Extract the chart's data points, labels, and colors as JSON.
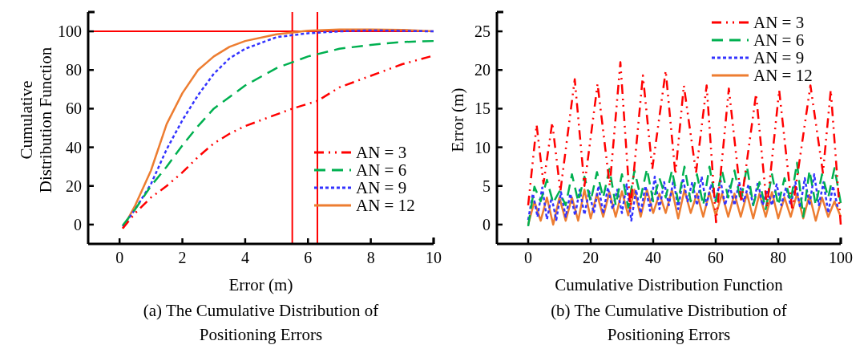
{
  "chart_data": [
    {
      "type": "line",
      "title": "(a) The Cumulative Distribution of Positioning Errors",
      "xlabel": "Error (m)",
      "ylabel": "Cumulative Distribution Function",
      "xlim": [
        -1,
        10
      ],
      "ylim": [
        -10,
        110
      ],
      "xticks": [
        0,
        2,
        4,
        6,
        8,
        10
      ],
      "yticks": [
        0,
        20,
        40,
        60,
        80,
        100
      ],
      "legend": "bottom right",
      "grid": false,
      "ref_lines": [
        {
          "axis": "y",
          "value": 100,
          "color": "#ff0000"
        },
        {
          "axis": "x",
          "value": 5.5,
          "color": "#ff0000"
        },
        {
          "axis": "x",
          "value": 6.3,
          "color": "#ff0000"
        }
      ],
      "series": [
        {
          "name": "AN = 3",
          "color": "#ff0000",
          "line_style": "dashdot",
          "x": [
            0.1,
            0.5,
            1,
            1.5,
            2,
            2.5,
            3,
            3.5,
            4,
            4.5,
            5,
            5.5,
            6.3,
            7,
            8,
            9,
            9.9
          ],
          "values": [
            -2,
            6,
            14,
            20,
            27,
            35,
            42,
            47,
            51,
            54,
            57,
            60,
            64,
            71,
            77,
            83,
            87
          ]
        },
        {
          "name": "AN = 6",
          "color": "#00b050",
          "line_style": "dashed",
          "x": [
            0.1,
            0.5,
            1,
            1.5,
            2,
            2.5,
            3,
            3.5,
            4,
            5,
            6,
            7,
            8,
            9,
            10
          ],
          "values": [
            -0.5,
            8,
            20,
            30,
            41,
            51,
            60,
            66,
            72,
            81,
            87,
            91,
            93,
            94.5,
            95
          ]
        },
        {
          "name": "AN = 9",
          "color": "#3333ff",
          "line_style": "dotted",
          "x": [
            0.1,
            0.5,
            1,
            1.5,
            2,
            2.5,
            3,
            3.5,
            4,
            5,
            6,
            7,
            8,
            10
          ],
          "values": [
            -1,
            8,
            21,
            39,
            54,
            67,
            78,
            86,
            91,
            97,
            99,
            100,
            100.5,
            100
          ]
        },
        {
          "name": "AN = 12",
          "color": "#ed7d31",
          "line_style": "solid",
          "x": [
            0.1,
            0.5,
            1,
            1.5,
            2,
            2.5,
            3,
            3.5,
            4,
            5,
            6,
            7,
            8,
            9,
            10
          ],
          "values": [
            -2,
            10,
            28,
            52,
            68,
            80,
            87,
            92,
            95,
            98.5,
            100.3,
            101,
            101,
            100.8,
            100
          ]
        }
      ]
    },
    {
      "type": "line",
      "title": "(b) The Cumulative Distribution of Positioning Errors",
      "xlabel": "Cumulative Distribution Function",
      "ylabel": "Error (m)",
      "xlim": [
        -10,
        100
      ],
      "ylim": [
        -2.5,
        27.5
      ],
      "xticks": [
        0,
        20,
        40,
        60,
        80,
        100
      ],
      "yticks": [
        0,
        5,
        10,
        15,
        20,
        25
      ],
      "legend": "top right",
      "grid": false,
      "series": [
        {
          "name": "AN = 3",
          "color": "#ff0000",
          "line_style": "dashdot",
          "x": [
            0,
            2.7,
            4.9,
            7.7,
            10.3,
            14.9,
            18,
            22.2,
            26.1,
            29.5,
            32.7,
            36.7,
            39.7,
            44,
            47.1,
            49.8,
            53.7,
            57.1,
            60.1,
            64.2,
            68.2,
            72.9,
            76.4,
            80.3,
            84.5,
            90.3,
            94.3,
            96.8,
            100
          ],
          "values": [
            2.5,
            12.9,
            5.3,
            13.2,
            4.3,
            18.8,
            5,
            18.2,
            5,
            21,
            2,
            19.3,
            7.2,
            19.9,
            6.5,
            18,
            6.7,
            18,
            0.3,
            17.6,
            2.9,
            16.9,
            2.2,
            17.4,
            1.8,
            18,
            6.7,
            17.4,
            0
          ]
        },
        {
          "name": "AN = 6",
          "color": "#00b050",
          "line_style": "dashed",
          "x": [
            0,
            2,
            4,
            6,
            8,
            10,
            12,
            14,
            16,
            18,
            20,
            22,
            24,
            26,
            28,
            30,
            32,
            34,
            36,
            38,
            40,
            42,
            44,
            46,
            48,
            50,
            52,
            54,
            56,
            58,
            60,
            62,
            64,
            66,
            68,
            70,
            72,
            74,
            76,
            78,
            80,
            82,
            84,
            86,
            88,
            90,
            92,
            94,
            96,
            98,
            100
          ],
          "values": [
            -0.2,
            4.9,
            3,
            5.8,
            2.8,
            4.3,
            2.5,
            6.5,
            3,
            6.2,
            3,
            6.8,
            3.5,
            7.2,
            2.5,
            6.5,
            2.2,
            7,
            3.5,
            7.2,
            3,
            6,
            3.5,
            7,
            3,
            7.5,
            3,
            6.5,
            2.5,
            7.5,
            3,
            7,
            3.5,
            7,
            3,
            7.5,
            2.5,
            5.5,
            2,
            6.5,
            2.5,
            6,
            3,
            8,
            1,
            7,
            2.5,
            6.5,
            3.5,
            7.3,
            2.8
          ]
        },
        {
          "name": "AN = 9",
          "color": "#3333ff",
          "line_style": "dotted",
          "x": [
            0,
            1.5,
            3,
            4.5,
            6,
            7.5,
            9,
            10.5,
            12,
            13.5,
            15,
            16.5,
            18,
            19.5,
            21,
            22.5,
            24,
            25.5,
            27,
            28.5,
            30,
            31.5,
            33,
            34.5,
            36,
            37.5,
            39,
            40.5,
            42,
            43.5,
            45,
            46.5,
            48,
            49.5,
            51,
            52.5,
            54,
            55.5,
            57,
            58.5,
            60,
            61.5,
            63,
            64.5,
            66,
            67.5,
            69,
            70.5,
            72,
            73.5,
            75,
            76.5,
            78,
            79.5,
            81,
            82.5,
            84,
            85.5,
            87,
            88.5,
            90,
            91.5,
            93,
            94.5,
            96,
            97.5,
            99
          ],
          "values": [
            0.6,
            4,
            1,
            4.8,
            0.7,
            3.5,
            0.6,
            4.2,
            1,
            4,
            1.2,
            4.5,
            1.3,
            4.3,
            1.5,
            5,
            1.4,
            4.8,
            2,
            4.5,
            1.5,
            5.2,
            0.5,
            4.5,
            1.5,
            5,
            1.8,
            6.2,
            2,
            5.5,
            2.5,
            5.8,
            2,
            6,
            3,
            5.5,
            2.5,
            6.2,
            2.5,
            5.2,
            3,
            5.8,
            2.5,
            5,
            2.5,
            5.5,
            3,
            5.2,
            2.5,
            5.5,
            2.5,
            4.5,
            2.5,
            5.2,
            2.5,
            4.8,
            2.5,
            5.5,
            2.2,
            6,
            2.5,
            6.5,
            2.5,
            5.5,
            1.5,
            5,
            2.3
          ]
        },
        {
          "name": "AN = 12",
          "color": "#ed7d31",
          "line_style": "solid",
          "x": [
            0,
            2,
            4,
            6,
            8,
            10,
            12,
            14,
            16,
            18,
            20,
            22,
            24,
            26,
            28,
            30,
            32,
            34,
            36,
            38,
            40,
            42,
            44,
            46,
            48,
            50,
            52,
            54,
            56,
            58,
            60,
            62,
            64,
            66,
            68,
            70,
            72,
            74,
            76,
            78,
            80,
            82,
            84,
            86,
            88,
            90,
            92,
            94,
            96,
            98,
            100
          ],
          "values": [
            0,
            3,
            0.5,
            3.5,
            0,
            3.5,
            0.5,
            3.5,
            0.5,
            4.5,
            0.8,
            4,
            1,
            4.2,
            1,
            4.3,
            1.2,
            4.5,
            1,
            4.5,
            1.5,
            4,
            1.5,
            4.5,
            0.8,
            4.5,
            1.5,
            4,
            1,
            4.2,
            1.2,
            4,
            1,
            4,
            1,
            4,
            0.8,
            4,
            1,
            4.2,
            0.8,
            3.5,
            1,
            4,
            0.8,
            3.8,
            0.5,
            3.5,
            1,
            3,
            1
          ]
        }
      ]
    }
  ]
}
